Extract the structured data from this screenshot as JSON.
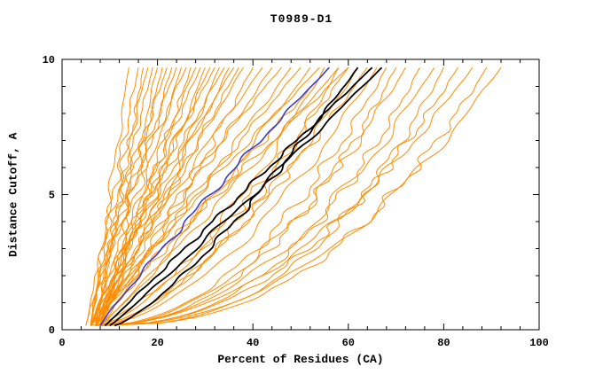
{
  "chart_data": {
    "type": "line",
    "title": "T0989-D1",
    "xlabel": "Percent of Residues (CA)",
    "ylabel": "Distance Cutoff, A",
    "xlim": [
      0,
      100
    ],
    "ylim": [
      0,
      10
    ],
    "xticks": [
      0,
      20,
      40,
      60,
      80,
      100
    ],
    "yticks": [
      0,
      5,
      10
    ],
    "x_minor_step": 4,
    "y_minor_step": 1,
    "grid": false,
    "legend": "none",
    "curve_y_start": 0.15,
    "curve_y_end": 9.7,
    "colors": {
      "frame": "#000000",
      "predictions": "#ff8c00",
      "reference_model": "#3b3bd0",
      "best_models": "#000000"
    },
    "series_groups": [
      {
        "name": "predictions",
        "color": "#ff8c00",
        "width": 1,
        "curves": [
          [
            6,
            14,
            1.0,
            0.8
          ],
          [
            6,
            16,
            1.1,
            1.0
          ],
          [
            7,
            17,
            0.95,
            0.9
          ],
          [
            5,
            18,
            1.05,
            1.1
          ],
          [
            7,
            19,
            1.15,
            0.8
          ],
          [
            6,
            20,
            0.9,
            1.2
          ],
          [
            8,
            21,
            1.0,
            1.0
          ],
          [
            6,
            22,
            1.2,
            0.9
          ],
          [
            7,
            23,
            0.95,
            1.3
          ],
          [
            5,
            24,
            1.1,
            1.0
          ],
          [
            8,
            25,
            1.0,
            0.8
          ],
          [
            6,
            26,
            1.25,
            1.1
          ],
          [
            7,
            27,
            0.9,
            1.2
          ],
          [
            6,
            28,
            1.05,
            0.9
          ],
          [
            8,
            29,
            1.15,
            1.0
          ],
          [
            7,
            30,
            0.95,
            1.4
          ],
          [
            6,
            31,
            1.0,
            1.0
          ],
          [
            8,
            32,
            1.2,
            0.9
          ],
          [
            7,
            33,
            0.9,
            1.2
          ],
          [
            6,
            34,
            1.1,
            1.0
          ],
          [
            8,
            35,
            1.0,
            1.3
          ],
          [
            7,
            36,
            1.15,
            0.9
          ],
          [
            6,
            37,
            0.95,
            1.1
          ],
          [
            7,
            38,
            1.05,
            1.0
          ],
          [
            8,
            40,
            0.9,
            1.4
          ],
          [
            6,
            42,
            1.1,
            1.0
          ],
          [
            7,
            44,
            1.0,
            1.2
          ],
          [
            8,
            46,
            1.2,
            0.9
          ],
          [
            6,
            48,
            0.95,
            1.3
          ],
          [
            7,
            50,
            1.05,
            1.0
          ],
          [
            8,
            52,
            0.9,
            1.2
          ],
          [
            6,
            54,
            1.1,
            1.0
          ],
          [
            7,
            56,
            1.0,
            1.3
          ],
          [
            8,
            58,
            0.95,
            1.0
          ],
          [
            6,
            60,
            1.05,
            1.2
          ],
          [
            7,
            55,
            0.65,
            1.5
          ],
          [
            8,
            58,
            0.6,
            1.4
          ],
          [
            6,
            60,
            0.7,
            1.6
          ],
          [
            7,
            62,
            0.62,
            1.3
          ],
          [
            8,
            64,
            0.68,
            1.5
          ],
          [
            7,
            66,
            0.58,
            1.4
          ],
          [
            8,
            68,
            0.5,
            1.6
          ],
          [
            7,
            70,
            0.45,
            1.5
          ],
          [
            9,
            72,
            0.52,
            1.7
          ],
          [
            8,
            75,
            0.42,
            1.5
          ],
          [
            7,
            78,
            0.48,
            1.8
          ],
          [
            9,
            80,
            0.4,
            1.5
          ],
          [
            8,
            83,
            0.45,
            1.6
          ],
          [
            7,
            86,
            0.5,
            1.4
          ],
          [
            9,
            89,
            0.42,
            1.7
          ],
          [
            8,
            92,
            0.46,
            1.5
          ]
        ]
      },
      {
        "name": "reference-model",
        "color": "#3b3bd0",
        "width": 1.6,
        "curves": [
          [
            8,
            56,
            1.08,
            0.9
          ]
        ]
      },
      {
        "name": "best-models",
        "color": "#000000",
        "width": 1.8,
        "curves": [
          [
            9,
            65,
            1.0,
            0.7
          ],
          [
            10,
            67,
            0.95,
            0.8
          ],
          [
            11,
            62,
            0.78,
            0.9
          ]
        ]
      }
    ]
  }
}
